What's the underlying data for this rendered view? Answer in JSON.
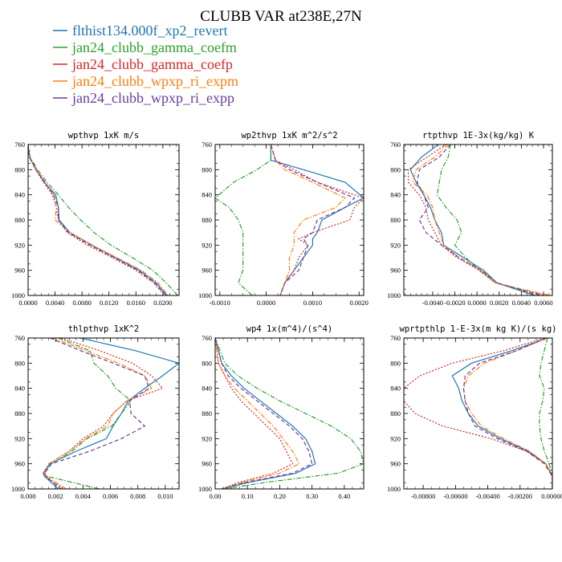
{
  "figure": {
    "title": "CLUBB VAR at238E,27N",
    "legend": [
      {
        "label": "flthist134.000f_xp2_revert",
        "color": "#1f77b4",
        "dash": "solid"
      },
      {
        "label": "jan24_clubb_gamma_coefm",
        "color": "#2ca02c",
        "dash": "dashdot"
      },
      {
        "label": "jan24_clubb_gamma_coefp",
        "color": "#d62728",
        "dash": "dotted"
      },
      {
        "label": "jan24_clubb_wpxp_ri_expm",
        "color": "#ff7f0e",
        "dash": "dashdot"
      },
      {
        "label": "jan24_clubb_wpxp_ri_expp",
        "color": "#6a3d9a",
        "dash": "dashed"
      }
    ]
  },
  "chart_data": [
    {
      "type": "line",
      "title": "wpthvp  1xK m/s",
      "xlim": [
        0.0,
        0.0224
      ],
      "ylim": [
        760,
        1000
      ],
      "y_inverted": true,
      "xticks": [
        0.0,
        0.004,
        0.008,
        0.012,
        0.016,
        0.02
      ],
      "xtick_labels": [
        "0.0000",
        "0.0040",
        "0.0080",
        "0.0120",
        "0.0160",
        "0.0200"
      ],
      "yticks": [
        760,
        800,
        840,
        880,
        920,
        960,
        1000
      ],
      "y": [
        760,
        780,
        800,
        820,
        840,
        860,
        880,
        900,
        920,
        940,
        960,
        980,
        1000
      ],
      "series": [
        {
          "values": [
            0.0,
            0.0002,
            0.0012,
            0.0024,
            0.0041,
            0.0045,
            0.0046,
            0.0062,
            0.0095,
            0.013,
            0.0165,
            0.019,
            0.0206
          ]
        },
        {
          "values": [
            0.0,
            0.0003,
            0.0014,
            0.0028,
            0.0045,
            0.006,
            0.0078,
            0.0098,
            0.0123,
            0.0155,
            0.0185,
            0.0205,
            0.0222
          ]
        },
        {
          "values": [
            0.0,
            0.0002,
            0.0011,
            0.0023,
            0.0036,
            0.0042,
            0.0045,
            0.0058,
            0.0088,
            0.0125,
            0.016,
            0.0186,
            0.0203
          ]
        },
        {
          "values": [
            0.0,
            0.0002,
            0.0012,
            0.0025,
            0.0038,
            0.0042,
            0.004,
            0.0062,
            0.0095,
            0.0132,
            0.0168,
            0.0193,
            0.0208
          ]
        },
        {
          "values": [
            0.0,
            0.0002,
            0.0012,
            0.0025,
            0.0038,
            0.0045,
            0.0045,
            0.006,
            0.0092,
            0.0128,
            0.0163,
            0.0188,
            0.0205
          ]
        }
      ]
    },
    {
      "type": "line",
      "title": "wp2thvp  1xK m^2/s^2",
      "xlim": [
        -0.0011,
        0.0021
      ],
      "ylim": [
        760,
        1000
      ],
      "y_inverted": true,
      "xticks": [
        -0.001,
        0.0,
        0.001,
        0.002
      ],
      "xtick_labels": [
        "-0.0010",
        "0.0000",
        "0.0010",
        "0.0020"
      ],
      "yticks": [
        760,
        800,
        840,
        880,
        920,
        960,
        1000
      ],
      "y": [
        760,
        785,
        800,
        820,
        845,
        860,
        880,
        900,
        910,
        920,
        940,
        960,
        980,
        1000
      ],
      "series": [
        {
          "values": [
            0.0001,
            0.0001,
            0.0008,
            0.0017,
            0.0021,
            0.0017,
            0.0012,
            0.0011,
            0.001,
            0.001,
            0.0008,
            0.0006,
            0.0004,
            0.0003
          ]
        },
        {
          "values": [
            0.0001,
            0.0001,
            -0.0002,
            -0.0007,
            -0.0011,
            -0.0008,
            -0.0006,
            -0.0005,
            -0.0005,
            -0.0005,
            -0.0005,
            -0.0005,
            -0.0006,
            -0.0003
          ]
        },
        {
          "values": [
            0.0001,
            0.0002,
            0.0006,
            0.0011,
            0.0021,
            0.0019,
            0.0018,
            0.001,
            0.0007,
            0.0009,
            0.0007,
            0.0006,
            0.0004,
            0.0003
          ]
        },
        {
          "values": [
            0.0001,
            0.0002,
            0.0004,
            0.001,
            0.0017,
            0.0015,
            0.0008,
            0.0006,
            0.0006,
            0.0006,
            0.0005,
            0.0005,
            0.0004,
            0.0003
          ]
        },
        {
          "values": [
            0.0001,
            0.0002,
            0.0005,
            0.0011,
            0.0019,
            0.0017,
            0.0011,
            0.001,
            0.0008,
            0.0009,
            0.0008,
            0.0007,
            0.0004,
            0.0003
          ]
        }
      ]
    },
    {
      "type": "line",
      "title": "rtpthvp  1E-3x(kg/kg) K",
      "xlim": [
        -0.0066,
        0.0068
      ],
      "ylim": [
        760,
        1000
      ],
      "y_inverted": true,
      "xticks": [
        -0.004,
        -0.002,
        0.0,
        0.002,
        0.004,
        0.006
      ],
      "xtick_labels": [
        "-0.0040",
        "-0.0020",
        "0.0000",
        "0.0020",
        "0.0040",
        "0.0060"
      ],
      "yticks": [
        760,
        800,
        840,
        880,
        920,
        960,
        1000
      ],
      "y": [
        760,
        780,
        800,
        820,
        840,
        860,
        880,
        900,
        920,
        940,
        960,
        980,
        1000
      ],
      "series": [
        {
          "values": [
            -0.0035,
            -0.005,
            -0.006,
            -0.0055,
            -0.0048,
            -0.0042,
            -0.0038,
            -0.0032,
            -0.003,
            -0.0012,
            0.0006,
            0.0018,
            0.0052
          ]
        },
        {
          "values": [
            -0.0024,
            -0.0026,
            -0.0032,
            -0.0034,
            -0.0036,
            -0.0028,
            -0.0018,
            -0.0014,
            -0.002,
            -0.001,
            0.0002,
            0.0018,
            0.0054
          ]
        },
        {
          "values": [
            -0.0028,
            -0.0045,
            -0.0062,
            -0.0062,
            -0.0052,
            -0.0046,
            -0.0044,
            -0.0038,
            -0.0032,
            -0.0018,
            0.0002,
            0.0016,
            0.0062
          ]
        },
        {
          "values": [
            -0.0026,
            -0.0038,
            -0.0055,
            -0.0058,
            -0.0045,
            -0.004,
            -0.0038,
            -0.0034,
            -0.003,
            -0.0016,
            0.0004,
            0.0016,
            0.0066
          ]
        },
        {
          "values": [
            -0.0024,
            -0.0034,
            -0.0052,
            -0.0054,
            -0.0048,
            -0.0044,
            -0.0052,
            -0.0046,
            -0.0032,
            -0.0016,
            0.0004,
            0.0018,
            0.0058
          ]
        }
      ]
    },
    {
      "type": "line",
      "title": "thlpthvp  1xK^2",
      "xlim": [
        0.0,
        0.011
      ],
      "ylim": [
        760,
        1000
      ],
      "y_inverted": true,
      "xticks": [
        0.0,
        0.002,
        0.004,
        0.006,
        0.008,
        0.01
      ],
      "xtick_labels": [
        "0.000",
        "0.002",
        "0.004",
        "0.006",
        "0.008",
        "0.010"
      ],
      "yticks": [
        760,
        800,
        840,
        880,
        920,
        960,
        1000
      ],
      "y": [
        760,
        780,
        800,
        820,
        840,
        860,
        880,
        900,
        920,
        940,
        960,
        975,
        980,
        1000
      ],
      "series": [
        {
          "values": [
            0.0038,
            0.0078,
            0.011,
            0.0098,
            0.0085,
            0.0073,
            0.0068,
            0.0062,
            0.0057,
            0.0035,
            0.0016,
            0.0011,
            0.0012,
            0.0022
          ]
        },
        {
          "values": [
            0.0022,
            0.0045,
            0.0048,
            0.0058,
            0.0064,
            0.0075,
            0.0068,
            0.0061,
            0.0043,
            0.0032,
            0.0017,
            0.0012,
            0.0014,
            0.0052
          ]
        },
        {
          "values": [
            0.0024,
            0.0052,
            0.0076,
            0.009,
            0.0098,
            0.0072,
            0.0062,
            0.0055,
            0.004,
            0.003,
            0.0015,
            0.0011,
            0.0012,
            0.0026
          ]
        },
        {
          "values": [
            0.0018,
            0.0042,
            0.0066,
            0.0085,
            0.009,
            0.0072,
            0.0062,
            0.0058,
            0.0042,
            0.003,
            0.0015,
            0.0012,
            0.0013,
            0.0028
          ]
        },
        {
          "values": [
            0.0016,
            0.0038,
            0.0062,
            0.0085,
            0.0088,
            0.0074,
            0.0075,
            0.0085,
            0.0068,
            0.0045,
            0.0017,
            0.0012,
            0.0013,
            0.0024
          ]
        }
      ]
    },
    {
      "type": "line",
      "title": "wp4  1x(m^4)/(s^4)",
      "xlim": [
        0.0,
        0.46
      ],
      "ylim": [
        760,
        1000
      ],
      "y_inverted": true,
      "xticks": [
        0.0,
        0.1,
        0.2,
        0.3,
        0.4
      ],
      "xtick_labels": [
        "0.00",
        "0.10",
        "0.20",
        "0.30",
        "0.40"
      ],
      "yticks": [
        760,
        800,
        840,
        880,
        920,
        960,
        1000
      ],
      "y": [
        760,
        800,
        820,
        840,
        860,
        880,
        900,
        920,
        940,
        960,
        975,
        990,
        1000
      ],
      "series": [
        {
          "values": [
            0.0,
            0.02,
            0.05,
            0.09,
            0.14,
            0.19,
            0.24,
            0.28,
            0.3,
            0.31,
            0.25,
            0.1,
            0.02
          ]
        },
        {
          "values": [
            0.0,
            0.03,
            0.07,
            0.13,
            0.2,
            0.28,
            0.36,
            0.42,
            0.45,
            0.46,
            0.38,
            0.15,
            0.03
          ]
        },
        {
          "values": [
            0.0,
            0.01,
            0.03,
            0.05,
            0.08,
            0.12,
            0.16,
            0.2,
            0.22,
            0.24,
            0.18,
            0.07,
            0.02
          ]
        },
        {
          "values": [
            0.0,
            0.01,
            0.03,
            0.06,
            0.1,
            0.14,
            0.18,
            0.21,
            0.24,
            0.26,
            0.2,
            0.08,
            0.02
          ]
        },
        {
          "values": [
            0.0,
            0.02,
            0.04,
            0.08,
            0.13,
            0.18,
            0.23,
            0.27,
            0.29,
            0.3,
            0.24,
            0.09,
            0.02
          ]
        }
      ]
    },
    {
      "type": "line",
      "title": "wprtpthlp  1-E-3x(m kg K)/(s kg)",
      "xlim": [
        -0.0092,
        0.0
      ],
      "ylim": [
        760,
        1000
      ],
      "y_inverted": true,
      "xticks": [
        -0.008,
        -0.006,
        -0.004,
        -0.002,
        0.0
      ],
      "xtick_labels": [
        "-0.00800",
        "-0.00600",
        "-0.00400",
        "-0.00200",
        "0.00000"
      ],
      "yticks": [
        760,
        800,
        840,
        880,
        920,
        960,
        1000
      ],
      "y": [
        760,
        780,
        800,
        820,
        840,
        860,
        880,
        900,
        920,
        940,
        960,
        980,
        1000
      ],
      "series": [
        {
          "values": [
            -0.0003,
            -0.0025,
            -0.005,
            -0.0062,
            -0.0058,
            -0.0056,
            -0.0052,
            -0.0046,
            -0.0032,
            -0.0015,
            -0.0004,
            0.0,
            0.0
          ]
        },
        {
          "values": [
            -0.0003,
            -0.0005,
            -0.0007,
            -0.0008,
            -0.0005,
            -0.0006,
            -0.0008,
            -0.0008,
            -0.0007,
            -0.0005,
            -0.0002,
            0.0,
            0.0
          ]
        },
        {
          "values": [
            -0.0005,
            -0.003,
            -0.0062,
            -0.0082,
            -0.0092,
            -0.0092,
            -0.0085,
            -0.0068,
            -0.0038,
            -0.0016,
            -0.0004,
            0.0,
            0.0
          ]
        },
        {
          "values": [
            -0.0003,
            -0.0022,
            -0.0042,
            -0.0052,
            -0.0055,
            -0.0054,
            -0.005,
            -0.0044,
            -0.003,
            -0.0014,
            -0.0004,
            0.0,
            0.0
          ]
        },
        {
          "values": [
            -0.0004,
            -0.0022,
            -0.0045,
            -0.0054,
            -0.0055,
            -0.0054,
            -0.0052,
            -0.0048,
            -0.0034,
            -0.0016,
            -0.0005,
            0.0,
            0.0
          ]
        }
      ]
    }
  ]
}
